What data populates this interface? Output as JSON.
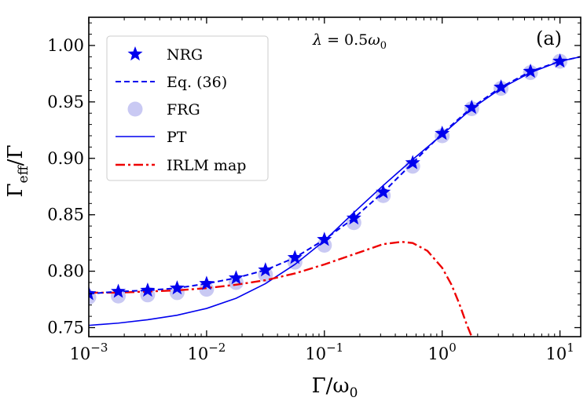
{
  "chart_data": {
    "type": "line",
    "xscale": "log",
    "xlim": [
      0.001,
      15
    ],
    "ylim": [
      0.742,
      1.025
    ],
    "xlabel": "Γ/ω0",
    "ylabel": "Γeff/Γ",
    "annotation": "λ = 0.5ω0",
    "panel_label": "(a)",
    "legend_position": "upper-left",
    "x_ticks": [
      {
        "value": 0.001,
        "base": "10",
        "exp": "−3"
      },
      {
        "value": 0.01,
        "base": "10",
        "exp": "−2"
      },
      {
        "value": 0.1,
        "base": "10",
        "exp": "−1"
      },
      {
        "value": 1,
        "base": "10",
        "exp": "0"
      },
      {
        "value": 10,
        "base": "10",
        "exp": "1"
      }
    ],
    "y_ticks": [
      {
        "value": 0.75,
        "label": "0.75"
      },
      {
        "value": 0.8,
        "label": "0.80"
      },
      {
        "value": 0.85,
        "label": "0.85"
      },
      {
        "value": 0.9,
        "label": "0.90"
      },
      {
        "value": 0.95,
        "label": "0.95"
      },
      {
        "value": 1.0,
        "label": "1.00"
      }
    ],
    "series": [
      {
        "name": "NRG",
        "legend": "NRG",
        "style": "star",
        "color": "#0000ee",
        "x": [
          0.001,
          0.00178,
          0.00316,
          0.00562,
          0.01,
          0.0178,
          0.0316,
          0.0562,
          0.1,
          0.178,
          0.316,
          0.562,
          1,
          1.78,
          3.16,
          5.62,
          10
        ],
        "y": [
          0.78,
          0.782,
          0.783,
          0.785,
          0.789,
          0.794,
          0.801,
          0.812,
          0.828,
          0.847,
          0.87,
          0.896,
          0.922,
          0.945,
          0.963,
          0.977,
          0.986
        ]
      },
      {
        "name": "Eq36",
        "legend": "Eq. (36)",
        "style": "dashed",
        "color": "#0000ee",
        "x": [
          0.001,
          0.00178,
          0.00316,
          0.00562,
          0.01,
          0.0178,
          0.0316,
          0.0562,
          0.1,
          0.178,
          0.316,
          0.562,
          1,
          1.78,
          3.16,
          5.62,
          10,
          15
        ],
        "y": [
          0.78,
          0.782,
          0.783,
          0.785,
          0.789,
          0.794,
          0.801,
          0.812,
          0.828,
          0.847,
          0.87,
          0.896,
          0.922,
          0.945,
          0.963,
          0.977,
          0.986,
          0.99
        ]
      },
      {
        "name": "FRG",
        "legend": "FRG",
        "style": "circle",
        "color": "#7777e0",
        "x": [
          0.001,
          0.00178,
          0.00316,
          0.00562,
          0.01,
          0.0178,
          0.0316,
          0.0562,
          0.1,
          0.178,
          0.316,
          0.562,
          1,
          1.78,
          3.16,
          5.62,
          10
        ],
        "y": [
          0.777,
          0.778,
          0.779,
          0.781,
          0.784,
          0.79,
          0.797,
          0.808,
          0.823,
          0.843,
          0.867,
          0.893,
          0.92,
          0.944,
          0.962,
          0.976,
          0.986
        ]
      },
      {
        "name": "PT",
        "legend": "PT",
        "style": "solid",
        "color": "#0000ee",
        "x": [
          0.001,
          0.00178,
          0.00316,
          0.00562,
          0.01,
          0.0178,
          0.0316,
          0.0562,
          0.1,
          0.178,
          0.316,
          0.562,
          1,
          1.78,
          3.16,
          5.62,
          10,
          15
        ],
        "y": [
          0.752,
          0.754,
          0.757,
          0.761,
          0.767,
          0.776,
          0.789,
          0.806,
          0.827,
          0.852,
          0.876,
          0.899,
          0.921,
          0.944,
          0.962,
          0.976,
          0.986,
          0.99
        ]
      },
      {
        "name": "IRLM",
        "legend": "IRLM map",
        "style": "dashdot",
        "color": "#ee0000",
        "x": [
          0.001,
          0.00178,
          0.00316,
          0.00562,
          0.01,
          0.0178,
          0.0316,
          0.0562,
          0.1,
          0.178,
          0.316,
          0.45,
          0.562,
          0.75,
          1.0,
          1.2,
          1.4,
          1.6,
          1.78
        ],
        "y": [
          0.781,
          0.781,
          0.782,
          0.783,
          0.785,
          0.788,
          0.792,
          0.798,
          0.806,
          0.815,
          0.824,
          0.826,
          0.825,
          0.818,
          0.803,
          0.788,
          0.771,
          0.754,
          0.742
        ]
      }
    ]
  }
}
